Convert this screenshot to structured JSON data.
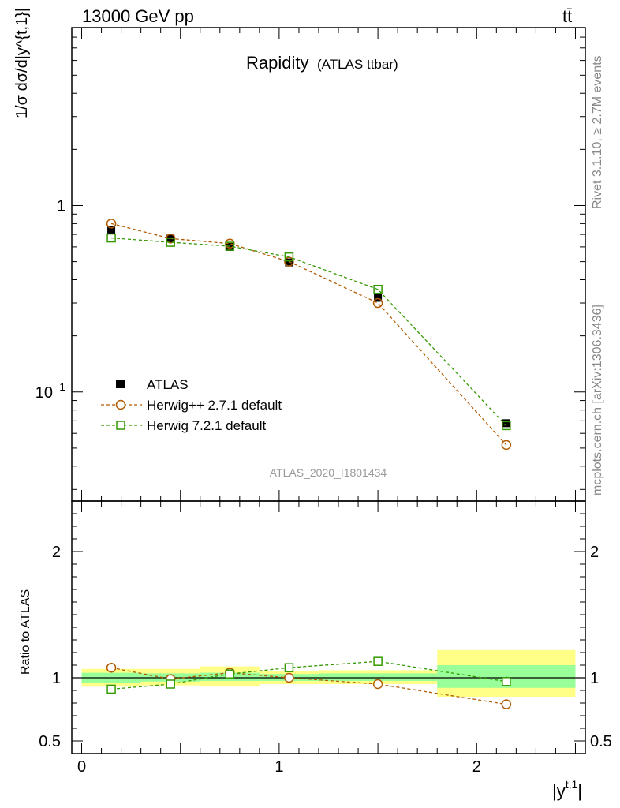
{
  "header": {
    "beam": "13000 GeV pp",
    "process": "tt̄",
    "plot_title": "Rapidity",
    "plot_subtitle": "(ATLAS ttbar)",
    "analysis_id": "ATLAS_2020_I1801434"
  },
  "side": {
    "rivet": "Rivet 3.1.10, ≥ 2.7M events",
    "source": "mcplots.cern.ch [arXiv:1306.3436]"
  },
  "axes": {
    "ylabel_main": "1/σ dσ/d|y^{t,1}|",
    "ylabel_ratio": "Ratio to ATLAS",
    "xlabel": "|y",
    "xlabel_sup": "t,1",
    "xlabel_end": "|"
  },
  "legend": {
    "data": "ATLAS",
    "mc1": "Herwig++ 2.7.1 default",
    "mc2": "Herwig 7.2.1 default"
  },
  "colors": {
    "data": "#000000",
    "mc1": "#b35900",
    "mc2": "#339900",
    "band_inner": "#99ff99",
    "band_outer": "#ffff88"
  },
  "chart_data": {
    "type": "scatter",
    "x_label": "|y^{t,1}|",
    "y_label": "1/σ dσ/d|y^{t,1}|",
    "x_range": [
      -0.05,
      2.55
    ],
    "y_range_log": [
      0.026,
      9.0
    ],
    "ratio_range": [
      0.4,
      2.4
    ],
    "x_ticks": [
      {
        "v": 0,
        "label": "0"
      },
      {
        "v": 1,
        "label": "1"
      },
      {
        "v": 2,
        "label": "2"
      }
    ],
    "y_ticks_main": [
      {
        "v": 1,
        "label": "1",
        "sup": ""
      },
      {
        "v": 0.1,
        "label": "10",
        "sup": "−1"
      }
    ],
    "y_ticks_ratio": [
      {
        "v": 2,
        "label": "2"
      },
      {
        "v": 1,
        "label": "1"
      },
      {
        "v": 0.5,
        "label": "0.5"
      }
    ],
    "bins": [
      {
        "lo": 0.0,
        "hi": 0.3,
        "x": 0.15
      },
      {
        "lo": 0.3,
        "hi": 0.6,
        "x": 0.45
      },
      {
        "lo": 0.6,
        "hi": 0.9,
        "x": 0.75
      },
      {
        "lo": 0.9,
        "hi": 1.2,
        "x": 1.05
      },
      {
        "lo": 1.2,
        "hi": 1.8,
        "x": 1.5
      },
      {
        "lo": 1.8,
        "hi": 2.5,
        "x": 2.15
      }
    ],
    "series": [
      {
        "name": "ATLAS",
        "key": "data",
        "marker": "filled-square",
        "values": [
          0.74,
          0.665,
          0.6,
          0.495,
          0.32,
          0.068
        ]
      },
      {
        "name": "Herwig++ 2.7.1 default",
        "key": "mc1",
        "marker": "open-circle",
        "values": [
          0.8,
          0.665,
          0.625,
          0.5,
          0.3,
          0.052
        ],
        "ratio": [
          1.08,
          0.99,
          1.04,
          1.0,
          0.95,
          0.79
        ],
        "ratio_err": [
          0,
          0,
          0,
          0,
          0,
          0.04
        ]
      },
      {
        "name": "Herwig 7.2.1 default",
        "key": "mc2",
        "marker": "open-square",
        "values": [
          0.67,
          0.635,
          0.605,
          0.53,
          0.355,
          0.066
        ],
        "ratio": [
          0.91,
          0.95,
          1.03,
          1.08,
          1.13,
          0.97
        ],
        "ratio_err": [
          0,
          0,
          0,
          0,
          0,
          0.04
        ]
      }
    ],
    "bands": {
      "inner": [
        [
          0.96,
          1.04
        ],
        [
          0.97,
          1.035
        ],
        [
          0.975,
          1.04
        ],
        [
          0.975,
          1.03
        ],
        [
          0.975,
          1.035
        ],
        [
          0.92,
          1.1
        ]
      ],
      "outer": [
        [
          0.93,
          1.07
        ],
        [
          0.94,
          1.07
        ],
        [
          0.93,
          1.09
        ],
        [
          0.95,
          1.05
        ],
        [
          0.95,
          1.06
        ],
        [
          0.85,
          1.22
        ]
      ]
    }
  }
}
